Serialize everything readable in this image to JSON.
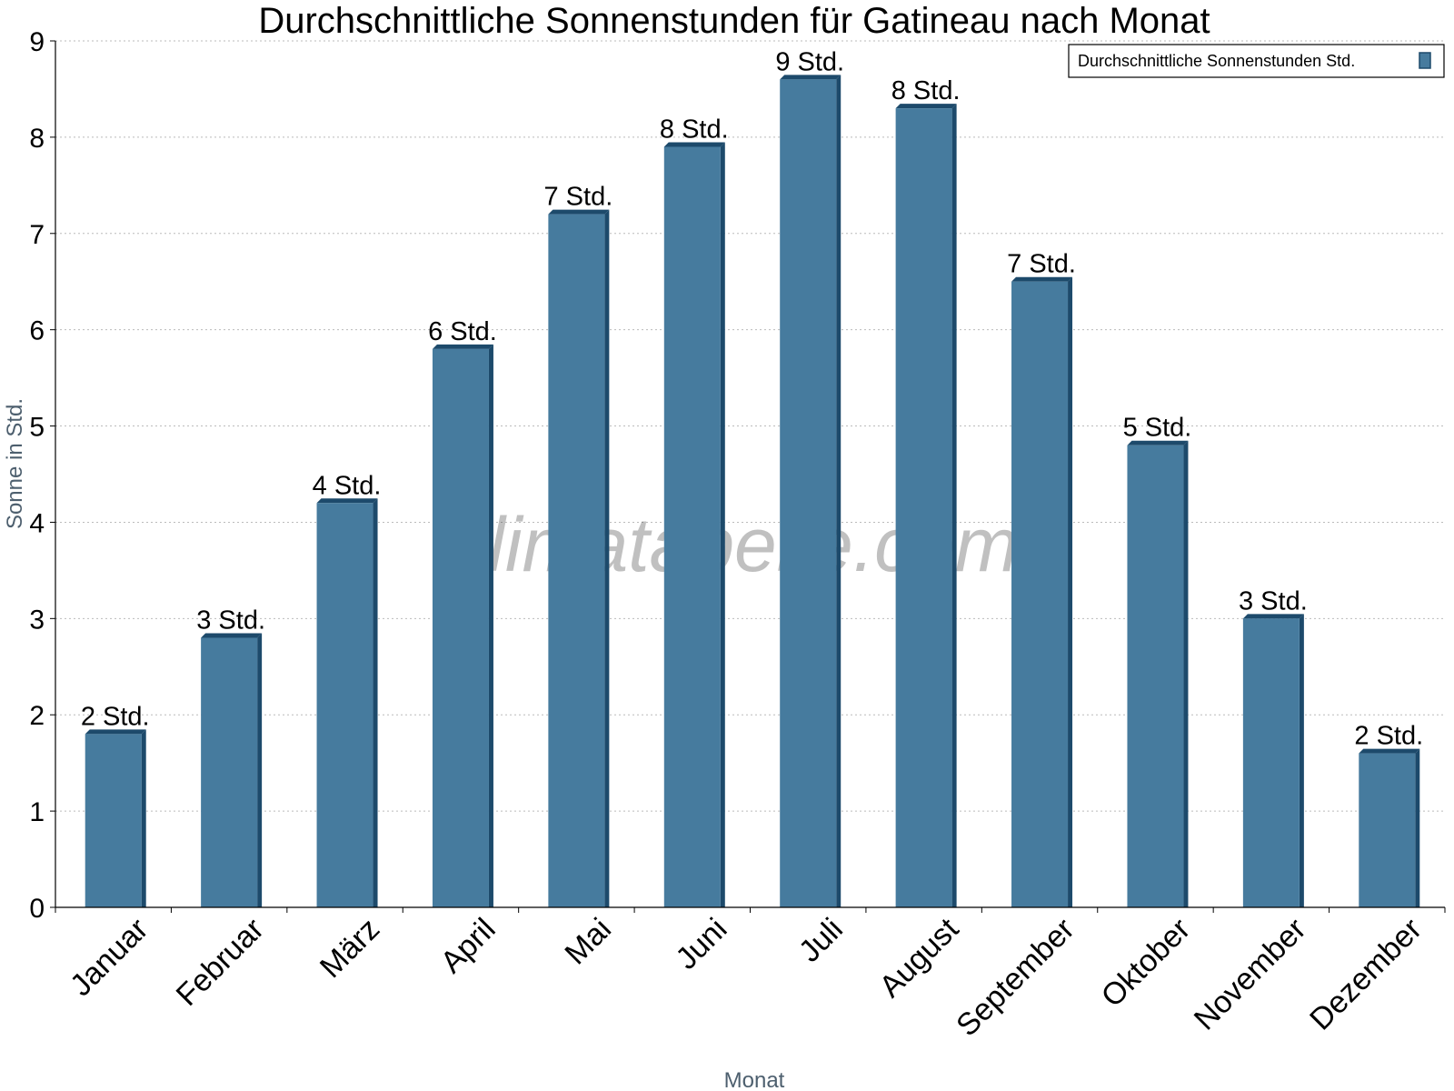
{
  "chart_data": {
    "type": "bar",
    "title": "Durchschnittliche Sonnenstunden für Gatineau nach Monat",
    "xlabel": "Monat",
    "ylabel": "Sonne in Std.",
    "ylim": [
      0,
      9
    ],
    "yticks": [
      "0",
      "1",
      "2",
      "3",
      "4",
      "5",
      "6",
      "7",
      "8",
      "9"
    ],
    "grid": true,
    "legend_position": "top-right",
    "categories": [
      "Januar",
      "Februar",
      "März",
      "April",
      "Mai",
      "Juni",
      "Juli",
      "August",
      "September",
      "Oktober",
      "November",
      "Dezember"
    ],
    "series": [
      {
        "name": "Durchschnittliche Sonnenstunden Std.",
        "color": "#467b9e",
        "values": [
          1.8,
          2.8,
          4.2,
          5.8,
          7.2,
          7.9,
          8.6,
          8.3,
          6.5,
          4.8,
          3.0,
          1.6
        ],
        "data_labels": [
          "2 Std.",
          "3 Std.",
          "4 Std.",
          "6 Std.",
          "7 Std.",
          "8 Std.",
          "9 Std.",
          "8 Std.",
          "7 Std.",
          "5 Std.",
          "3 Std.",
          "2 Std."
        ]
      }
    ]
  },
  "watermark": "klimatabelle.com",
  "colors": {
    "bar": "#467b9e",
    "bar_edge": "#1d4a6b",
    "grid": "#bbbbbb"
  }
}
